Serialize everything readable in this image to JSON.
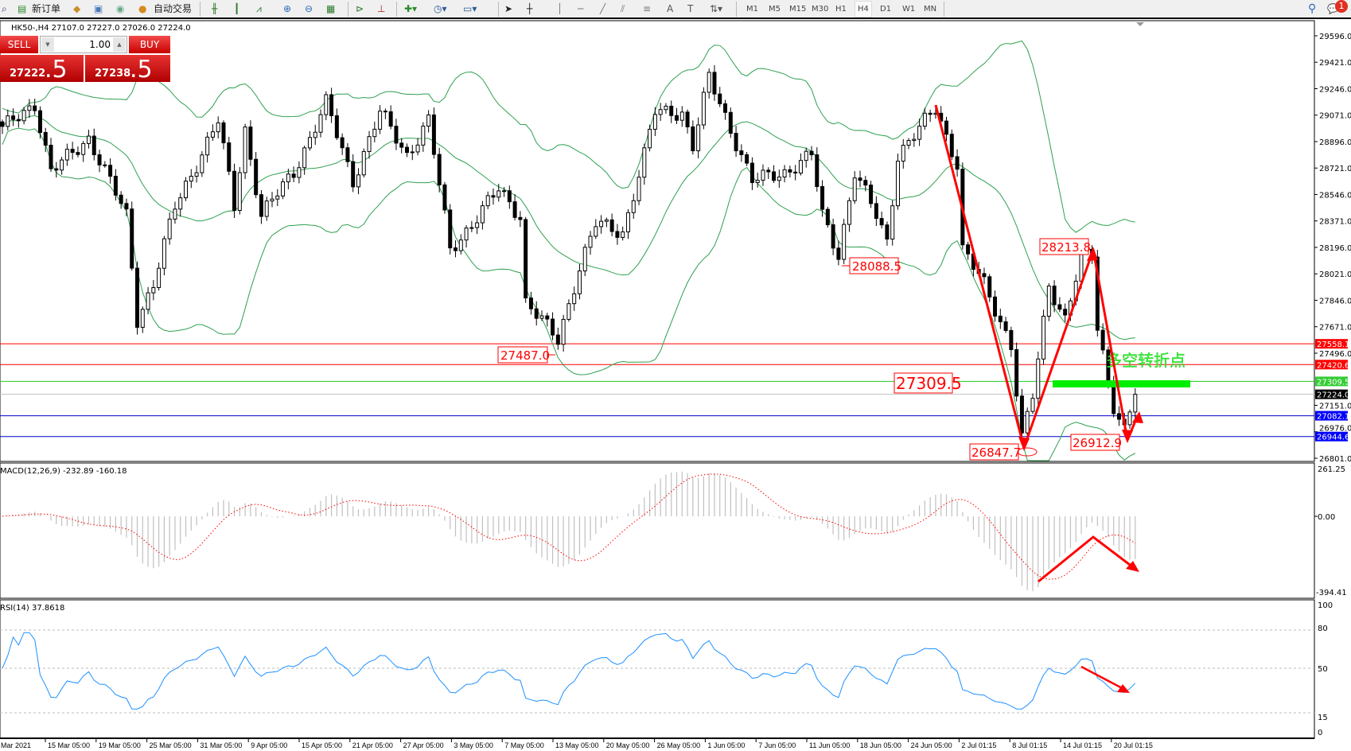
{
  "toolbar": {
    "new_order": "新订单",
    "auto_trading": "自动交易",
    "timeframes": [
      "M1",
      "M5",
      "M15",
      "M30",
      "H1",
      "H4",
      "D1",
      "W1",
      "MN"
    ],
    "active_timeframe": "H4",
    "notification_count": "1"
  },
  "chart_header": "HK50-,H4  27107.0 27227.0 27026.0 27224.0",
  "trade_panel": {
    "sell_label": "SELL",
    "buy_label": "BUY",
    "volume": "1.00",
    "sell_price_main": "27222",
    "sell_price_frac": ".5",
    "buy_price_main": "27238",
    "buy_price_frac": ".5"
  },
  "price_axis": {
    "ticks": [
      "29596.0",
      "29421.0",
      "29246.0",
      "29071.0",
      "28896.0",
      "28721.0",
      "28546.0",
      "28371.0",
      "28196.0",
      "28021.0",
      "27846.0",
      "27671.0",
      "27496.0",
      "27151.0",
      "26976.0",
      "26801.0"
    ]
  },
  "levels": [
    {
      "value": "27558.1",
      "line": "#ff0000",
      "bg": "#ff0000"
    },
    {
      "value": "27420.6",
      "line": "#ff0000",
      "bg": "#ff0000"
    },
    {
      "value": "27309.5",
      "line": "#22cc22",
      "bg": "#33cc33"
    },
    {
      "value": "27224.0",
      "line": "#c0c0c0",
      "bg": "#000000"
    },
    {
      "value": "27082.1",
      "line": "#0000cc",
      "bg": "#0000ff"
    },
    {
      "value": "26944.6",
      "line": "#0000cc",
      "bg": "#0000ff"
    }
  ],
  "annotations": {
    "label_28088": "28088.5",
    "label_27487": "27487.0",
    "label_27309": "27309.5",
    "label_28213": "28213.8",
    "label_26847": "26847.7",
    "label_26912": "26912.9",
    "turn_point": "多空转折点"
  },
  "macd": {
    "title": "MACD(12,26,9) -232.89 -160.18",
    "axis": [
      "261.25",
      "0.00",
      "-394.41"
    ]
  },
  "rsi": {
    "title": "RSI(14) 37.8618",
    "axis": [
      "100",
      "80",
      "50",
      "15",
      "0"
    ]
  },
  "time_axis": [
    "Mar 2021",
    "15 Mar 05:00",
    "19 Mar 05:00",
    "25 Mar 05:00",
    "31 Mar 05:00",
    "9 Apr 05:00",
    "15 Apr 05:00",
    "21 Apr 05:00",
    "27 Apr 05:00",
    "3 May 05:00",
    "7 May 05:00",
    "13 May 05:00",
    "20 May 05:00",
    "26 May 05:00",
    "1 Jun 05:00",
    "7 Jun 05:00",
    "11 Jun 05:00",
    "18 Jun 05:00",
    "24 Jun 05:00",
    "2 Jul 01:15",
    "8 Jul 01:15",
    "14 Jul 01:15",
    "20 Jul 01:15"
  ],
  "colors": {
    "bands": "#2ea04f",
    "annotation": "#ff0000",
    "rsi": "#1e90ff",
    "signal": "#ff0000",
    "histogram": "#c0c0c0"
  },
  "chart": {
    "symbol": "HK50-",
    "timeframe": "H4",
    "type": "candlestick",
    "indicators": [
      "Bollinger Bands",
      "MACD(12,26,9)",
      "RSI(14)"
    ],
    "price_path_bar_price": [
      [
        0,
        28978
      ],
      [
        6,
        29149
      ],
      [
        9,
        28693
      ],
      [
        16,
        28921
      ],
      [
        23,
        28408
      ],
      [
        25,
        27724
      ],
      [
        28,
        27952
      ],
      [
        32,
        28465
      ],
      [
        40,
        29035
      ],
      [
        43,
        28465
      ],
      [
        45,
        28978
      ],
      [
        48,
        28408
      ],
      [
        54,
        28693
      ],
      [
        60,
        29149
      ],
      [
        65,
        28636
      ],
      [
        70,
        29092
      ],
      [
        75,
        28807
      ],
      [
        79,
        29035
      ],
      [
        83,
        28180
      ],
      [
        87,
        28351
      ],
      [
        92,
        28579
      ],
      [
        96,
        28408
      ],
      [
        97,
        27838
      ],
      [
        103,
        27581
      ],
      [
        107,
        28066
      ],
      [
        110,
        28351
      ],
      [
        115,
        28294
      ],
      [
        119,
        28807
      ],
      [
        121,
        29092
      ],
      [
        126,
        29092
      ],
      [
        128,
        28864
      ],
      [
        131,
        29320
      ],
      [
        135,
        28978
      ],
      [
        139,
        28636
      ],
      [
        145,
        28693
      ],
      [
        150,
        28807
      ],
      [
        152,
        28408
      ],
      [
        155,
        28152
      ],
      [
        158,
        28693
      ],
      [
        162,
        28408
      ],
      [
        164,
        28237
      ],
      [
        166,
        28807
      ],
      [
        170,
        28978
      ],
      [
        173,
        29120
      ],
      [
        177,
        28750
      ],
      [
        178,
        28180
      ],
      [
        182,
        27952
      ],
      [
        187,
        27553
      ],
      [
        189,
        26926
      ],
      [
        191,
        27211
      ],
      [
        194,
        27952
      ],
      [
        197,
        27724
      ],
      [
        200,
        28123
      ],
      [
        202,
        28152
      ],
      [
        203,
        27667
      ],
      [
        206,
        27154
      ],
      [
        208,
        26983
      ],
      [
        210,
        27224
      ]
    ]
  }
}
